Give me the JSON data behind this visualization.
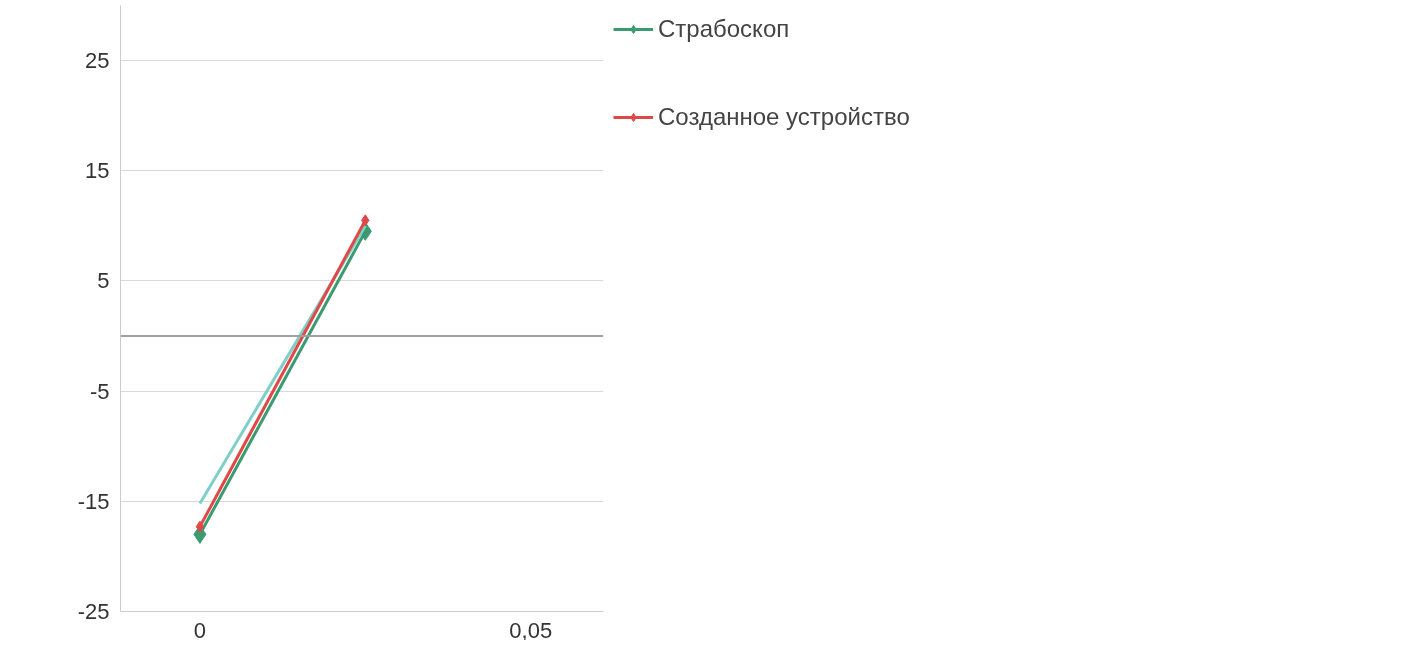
{
  "chart_data": {
    "type": "line",
    "x": [
      0,
      0.025
    ],
    "series": [
      {
        "name": "Страбоскоп",
        "color": "#3a9a70",
        "values": [
          -18,
          9.5
        ],
        "marker": "diamond"
      },
      {
        "color": "#7fcfc8",
        "values": [
          -15.2,
          10
        ],
        "marker": "none"
      },
      {
        "name": "Созданное устройство",
        "color": "#e04848",
        "values": [
          -17.3,
          10.5
        ],
        "marker": "diamond"
      }
    ],
    "xlim": [
      -0.012,
      0.061
    ],
    "xticks": [
      0,
      {
        "value": 0.05,
        "label": "0,05"
      }
    ],
    "ylim": [
      -25,
      30
    ],
    "yticks": [
      25,
      15,
      5,
      -5,
      -15,
      -25
    ],
    "ref_lines": [
      {
        "axis": "y",
        "value": 0,
        "color": "#a0a0a0"
      }
    ],
    "grid": "y",
    "legend": "right",
    "line_style": "solid"
  }
}
